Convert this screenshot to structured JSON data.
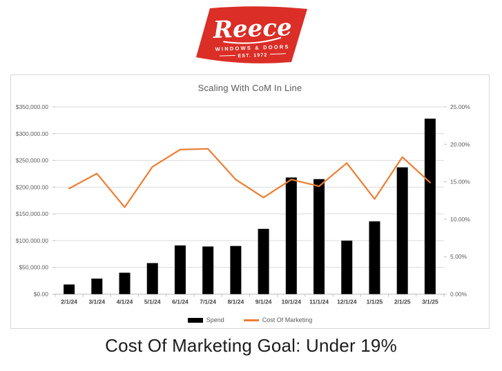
{
  "logo": {
    "brand": "Reece",
    "tagline": "WINDOWS & DOORS",
    "established": "EST. 1972",
    "bg_color": "#DA2E26",
    "text_color": "#FFFFFF"
  },
  "chart": {
    "title": "Scaling With CoM In Line",
    "title_color": "#595959",
    "legend": [
      {
        "label": "Spend",
        "swatch": "bar",
        "color": "#000000"
      },
      {
        "label": "Cost Of Marketing",
        "swatch": "line",
        "color": "#ED7D31"
      }
    ]
  },
  "chart_data": {
    "type": "combo",
    "title": "Scaling With CoM In Line",
    "categories": [
      "2/1/24",
      "3/1/24",
      "4/1/24",
      "5/1/24",
      "6/1/24",
      "7/1/24",
      "8/1/24",
      "9/1/24",
      "10/1/24",
      "11/1/24",
      "12/1/24",
      "1/1/25",
      "2/1/25",
      "3/1/25"
    ],
    "series": [
      {
        "name": "Spend",
        "type": "bar",
        "axis": "left",
        "color": "#000000",
        "values": [
          18000,
          29000,
          40000,
          58000,
          91000,
          89000,
          90000,
          122000,
          218000,
          215000,
          100000,
          136000,
          237000,
          328000
        ]
      },
      {
        "name": "Cost Of Marketing",
        "type": "line",
        "axis": "right",
        "color": "#ED7D31",
        "values": [
          14.1,
          16.1,
          11.6,
          17.0,
          19.3,
          19.4,
          15.3,
          12.9,
          15.3,
          14.4,
          17.5,
          12.7,
          18.3,
          14.9
        ]
      }
    ],
    "left_axis": {
      "min": 0,
      "max": 350000,
      "step": 50000,
      "format": "$#,##0.00"
    },
    "right_axis": {
      "min": 0,
      "max": 25,
      "step": 5,
      "format": "0.00%"
    },
    "gridlines": true,
    "legend_position": "bottom"
  },
  "caption": {
    "text": "Cost Of Marketing Goal: Under 19%"
  }
}
